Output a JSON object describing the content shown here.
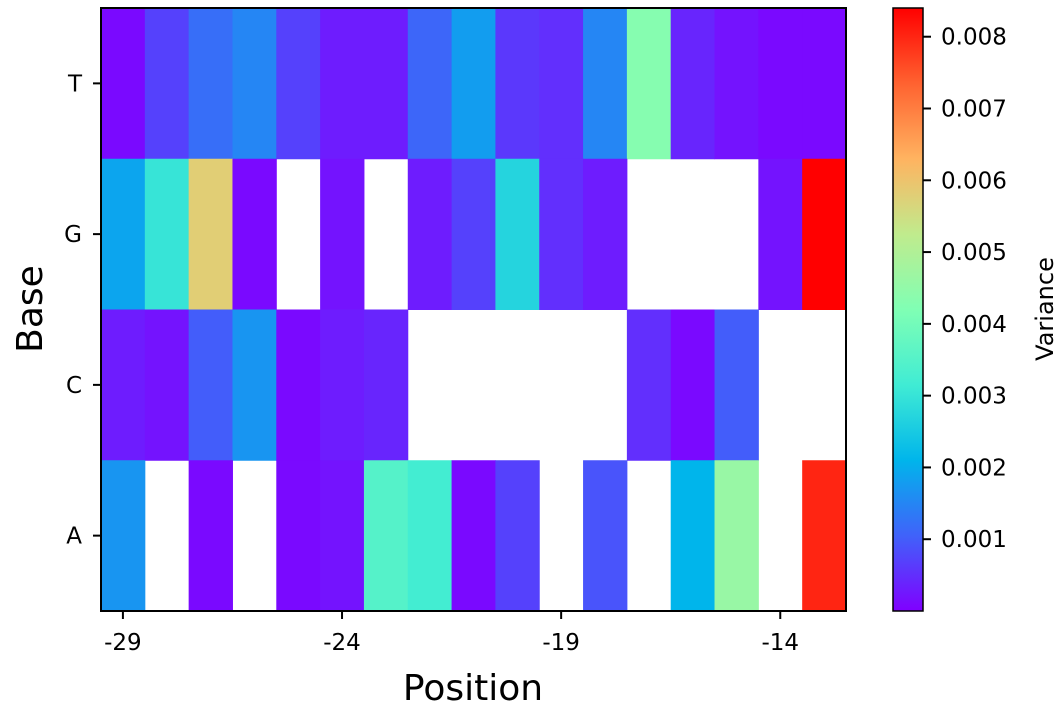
{
  "chart_data": {
    "type": "heatmap",
    "xlabel": "Position",
    "ylabel": "Base",
    "x": [
      -29,
      -28,
      -27,
      -26,
      -25,
      -24,
      -23,
      -22,
      -21,
      -20,
      -19,
      -18,
      -17,
      -16,
      -15,
      -14,
      -13
    ],
    "x_tick_labels": [
      "-29",
      "-24",
      "-19",
      "-14"
    ],
    "x_tick_values": [
      -29,
      -24,
      -19,
      -14
    ],
    "y": [
      "T",
      "G",
      "C",
      "A"
    ],
    "values": [
      [
        0.0001,
        0.0007,
        0.0012,
        0.0015,
        0.0007,
        0.0003,
        0.0003,
        0.0011,
        0.0018,
        0.0006,
        0.0005,
        0.0015,
        0.0043,
        0.0004,
        0.0002,
        0.0001,
        0.0001
      ],
      [
        0.0019,
        0.003,
        0.0058,
        0.0001,
        null,
        0.0002,
        null,
        0.0003,
        0.0007,
        0.0027,
        0.0005,
        0.0003,
        null,
        null,
        null,
        0.0002,
        0.0084
      ],
      [
        0.0003,
        0.0002,
        0.001,
        0.0017,
        0.0001,
        0.0003,
        0.0004,
        null,
        null,
        null,
        null,
        null,
        0.0005,
        0.0001,
        0.001,
        null,
        null
      ],
      [
        0.0017,
        null,
        0.0001,
        null,
        0.0001,
        0.0002,
        0.0035,
        0.0032,
        0.0001,
        0.0007,
        null,
        0.0009,
        null,
        0.0021,
        0.0046,
        null,
        0.008
      ]
    ],
    "colorbar": {
      "label": "Variance",
      "min": 0,
      "max": 0.0084,
      "ticks": [
        0.001,
        0.002,
        0.003,
        0.004,
        0.005,
        0.006,
        0.007,
        0.008
      ],
      "tick_labels": [
        "0.001",
        "0.002",
        "0.003",
        "0.004",
        "0.005",
        "0.006",
        "0.007",
        "0.008"
      ],
      "colormap": "rainbow"
    }
  }
}
